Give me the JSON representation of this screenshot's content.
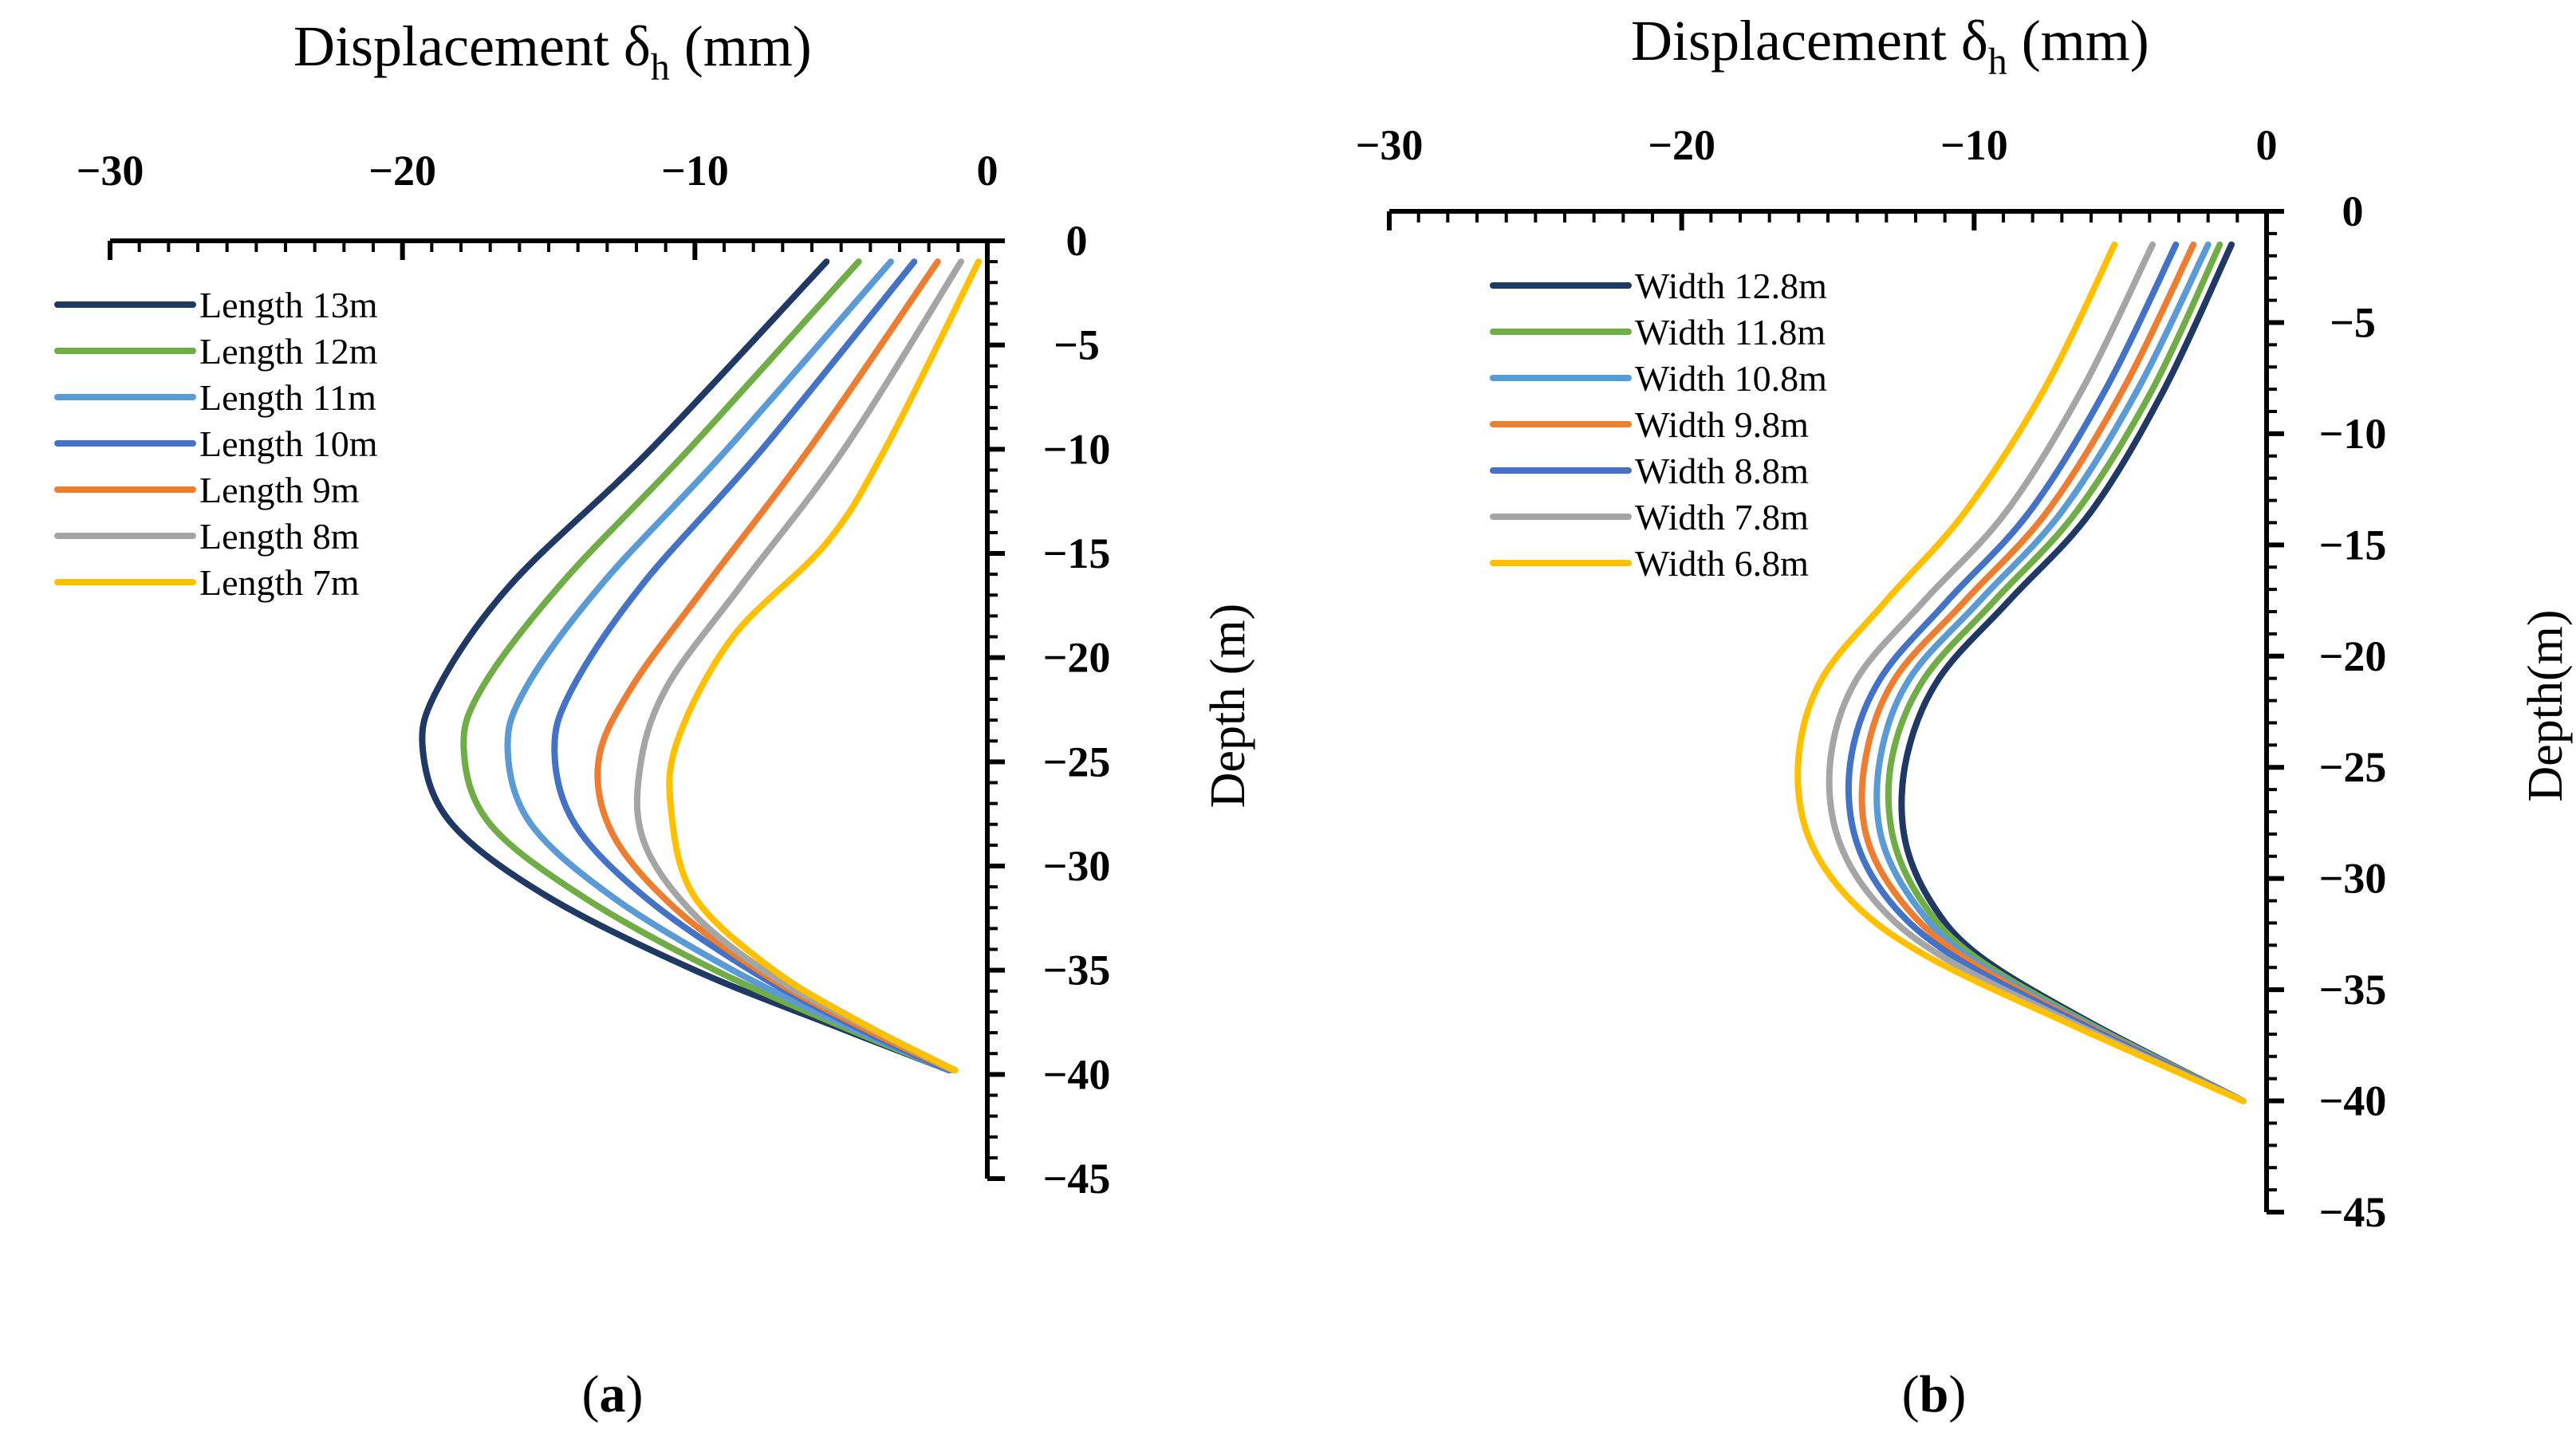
{
  "chart_data": [
    {
      "type": "line",
      "panel_label": "a",
      "title_main": "Displacement δ",
      "title_sub": "h",
      "title_unit": " (mm)",
      "ylabel": "Depth (m)",
      "xlim": [
        -30,
        0
      ],
      "ylim": [
        -45,
        0
      ],
      "x_ticks": [
        "−30",
        "−20",
        "−10",
        "0"
      ],
      "y_ticks": [
        "0",
        "−5",
        "−10",
        "−15",
        "−20",
        "−25",
        "−30",
        "−35",
        "−40",
        "−45"
      ],
      "grid": false,
      "legend_position": "top-left",
      "series": [
        {
          "name": "Length 13m",
          "color": "#1F3864",
          "points": [
            [
              -5.5,
              -1
            ],
            [
              -11.5,
              -10
            ],
            [
              -16.3,
              -16.5
            ],
            [
              -18.8,
              -21.5
            ],
            [
              -19.3,
              -24.5
            ],
            [
              -18.3,
              -28
            ],
            [
              -15,
              -31.5
            ],
            [
              -10,
              -35
            ],
            [
              -5,
              -37.8
            ],
            [
              -1.3,
              -39.8
            ]
          ]
        },
        {
          "name": "Length 12m",
          "color": "#70AD47",
          "points": [
            [
              -4.4,
              -1
            ],
            [
              -10.2,
              -10
            ],
            [
              -14.6,
              -16.5
            ],
            [
              -17.3,
              -21.5
            ],
            [
              -17.9,
              -24.5
            ],
            [
              -17,
              -28
            ],
            [
              -13.8,
              -31.5
            ],
            [
              -9.3,
              -35
            ],
            [
              -4.8,
              -37.8
            ],
            [
              -1.3,
              -39.8
            ]
          ]
        },
        {
          "name": "Length 11m",
          "color": "#5B9BD5",
          "points": [
            [
              -3.3,
              -1
            ],
            [
              -8.9,
              -10
            ],
            [
              -13.2,
              -16.5
            ],
            [
              -15.8,
              -21.5
            ],
            [
              -16.4,
              -24.5
            ],
            [
              -15.6,
              -28
            ],
            [
              -12.8,
              -31.5
            ],
            [
              -8.7,
              -35
            ],
            [
              -4.6,
              -37.8
            ],
            [
              -1.3,
              -39.8
            ]
          ]
        },
        {
          "name": "Length 10m",
          "color": "#4472C4",
          "points": [
            [
              -2.5,
              -1
            ],
            [
              -7.7,
              -10
            ],
            [
              -11.8,
              -16.5
            ],
            [
              -14.2,
              -21.5
            ],
            [
              -14.8,
              -24.5
            ],
            [
              -14.1,
              -28
            ],
            [
              -11.7,
              -31.5
            ],
            [
              -8.1,
              -35
            ],
            [
              -4.4,
              -37.8
            ],
            [
              -1.3,
              -39.8
            ]
          ]
        },
        {
          "name": "Length 9m",
          "color": "#ED7D31",
          "points": [
            [
              -1.7,
              -1
            ],
            [
              -6.1,
              -10
            ],
            [
              -9.6,
              -16.5
            ],
            [
              -12.2,
              -21.5
            ],
            [
              -13.3,
              -25
            ],
            [
              -12.8,
              -28.5
            ],
            [
              -10.7,
              -32
            ],
            [
              -7.5,
              -35.3
            ],
            [
              -4.2,
              -37.8
            ],
            [
              -1.2,
              -39.8
            ]
          ]
        },
        {
          "name": "Length 8m",
          "color": "#A5A5A5",
          "points": [
            [
              -0.9,
              -1
            ],
            [
              -4.9,
              -10
            ],
            [
              -8.4,
              -16.5
            ],
            [
              -11,
              -21.5
            ],
            [
              -11.9,
              -25.5
            ],
            [
              -11.7,
              -29
            ],
            [
              -9.9,
              -32.5
            ],
            [
              -7.1,
              -35.5
            ],
            [
              -4,
              -37.8
            ],
            [
              -1.2,
              -39.8
            ]
          ]
        },
        {
          "name": "Length 7m",
          "color": "#FFC000",
          "points": [
            [
              -0.3,
              -1
            ],
            [
              -3.5,
              -10
            ],
            [
              -5.5,
              -14.5
            ],
            [
              -8.7,
              -19
            ],
            [
              -10.6,
              -24
            ],
            [
              -10.8,
              -27.5
            ],
            [
              -10,
              -31.5
            ],
            [
              -7.3,
              -35
            ],
            [
              -4.2,
              -37.6
            ],
            [
              -1.1,
              -39.8
            ]
          ]
        }
      ]
    },
    {
      "type": "line",
      "panel_label": "b",
      "title_main": "Displacement δ",
      "title_sub": "h",
      "title_unit": " (mm)",
      "ylabel": "Depth(m)",
      "xlim": [
        -30,
        0
      ],
      "ylim": [
        -45,
        0
      ],
      "x_ticks": [
        "−30",
        "−20",
        "−10",
        "0"
      ],
      "y_ticks": [
        "0",
        "−5",
        "−10",
        "−15",
        "−20",
        "−25",
        "−30",
        "−35",
        "−40",
        "−45"
      ],
      "grid": false,
      "legend_position": "top-left",
      "series": [
        {
          "name": "Width 12.8m",
          "color": "#1F3864",
          "points": [
            [
              -1.2,
              -1.5
            ],
            [
              -3.5,
              -8
            ],
            [
              -6,
              -13.5
            ],
            [
              -8.8,
              -17.5
            ],
            [
              -11.2,
              -21
            ],
            [
              -12.3,
              -24.5
            ],
            [
              -12.4,
              -28
            ],
            [
              -11.5,
              -31
            ],
            [
              -9.8,
              -33.5
            ],
            [
              -6,
              -36.5
            ],
            [
              -0.8,
              -40
            ]
          ]
        },
        {
          "name": "Width 11.8m",
          "color": "#70AD47",
          "points": [
            [
              -1.6,
              -1.5
            ],
            [
              -3.9,
              -8
            ],
            [
              -6.5,
              -13.5
            ],
            [
              -9.3,
              -17.5
            ],
            [
              -11.7,
              -21
            ],
            [
              -12.8,
              -24.5
            ],
            [
              -12.8,
              -28
            ],
            [
              -11.8,
              -31
            ],
            [
              -10,
              -33.5
            ],
            [
              -6.1,
              -36.5
            ],
            [
              -0.8,
              -40
            ]
          ]
        },
        {
          "name": "Width 10.8m",
          "color": "#5B9BD5",
          "points": [
            [
              -2,
              -1.5
            ],
            [
              -4.4,
              -8
            ],
            [
              -7,
              -13.5
            ],
            [
              -9.8,
              -17.5
            ],
            [
              -12.2,
              -21
            ],
            [
              -13.2,
              -24.5
            ],
            [
              -13.2,
              -28
            ],
            [
              -12.1,
              -31
            ],
            [
              -10.2,
              -33.5
            ],
            [
              -6.2,
              -36.5
            ],
            [
              -0.8,
              -40
            ]
          ]
        },
        {
          "name": "Width 9.8m",
          "color": "#ED7D31",
          "points": [
            [
              -2.5,
              -1.5
            ],
            [
              -4.9,
              -8
            ],
            [
              -7.5,
              -13.5
            ],
            [
              -10.3,
              -17.5
            ],
            [
              -12.7,
              -21
            ],
            [
              -13.7,
              -24.5
            ],
            [
              -13.7,
              -28
            ],
            [
              -12.5,
              -31
            ],
            [
              -10.4,
              -33.5
            ],
            [
              -6.3,
              -36.5
            ],
            [
              -0.8,
              -40
            ]
          ]
        },
        {
          "name": "Width 8.8m",
          "color": "#4472C4",
          "points": [
            [
              -3.1,
              -1.5
            ],
            [
              -5.5,
              -8
            ],
            [
              -8.1,
              -13.5
            ],
            [
              -10.9,
              -17.5
            ],
            [
              -13.2,
              -21
            ],
            [
              -14.2,
              -24.5
            ],
            [
              -14.1,
              -28
            ],
            [
              -12.9,
              -31
            ],
            [
              -10.7,
              -33.5
            ],
            [
              -6.4,
              -36.5
            ],
            [
              -0.8,
              -40
            ]
          ]
        },
        {
          "name": "Width 7.8m",
          "color": "#A5A5A5",
          "points": [
            [
              -3.9,
              -1.5
            ],
            [
              -6.3,
              -8
            ],
            [
              -8.9,
              -13.5
            ],
            [
              -11.7,
              -17.5
            ],
            [
              -14,
              -21
            ],
            [
              -14.9,
              -24.5
            ],
            [
              -14.7,
              -28
            ],
            [
              -13.4,
              -31
            ],
            [
              -11.1,
              -33.5
            ],
            [
              -6.6,
              -36.5
            ],
            [
              -0.8,
              -40
            ]
          ]
        },
        {
          "name": "Width 6.8m",
          "color": "#FFC000",
          "points": [
            [
              -5.2,
              -1.5
            ],
            [
              -7.6,
              -8
            ],
            [
              -10.3,
              -13.5
            ],
            [
              -13,
              -17.5
            ],
            [
              -15.2,
              -21
            ],
            [
              -16,
              -24.5
            ],
            [
              -15.7,
              -28
            ],
            [
              -14.2,
              -31
            ],
            [
              -11.6,
              -33.5
            ],
            [
              -6.8,
              -36.5
            ],
            [
              -0.8,
              -40
            ]
          ]
        }
      ]
    }
  ]
}
